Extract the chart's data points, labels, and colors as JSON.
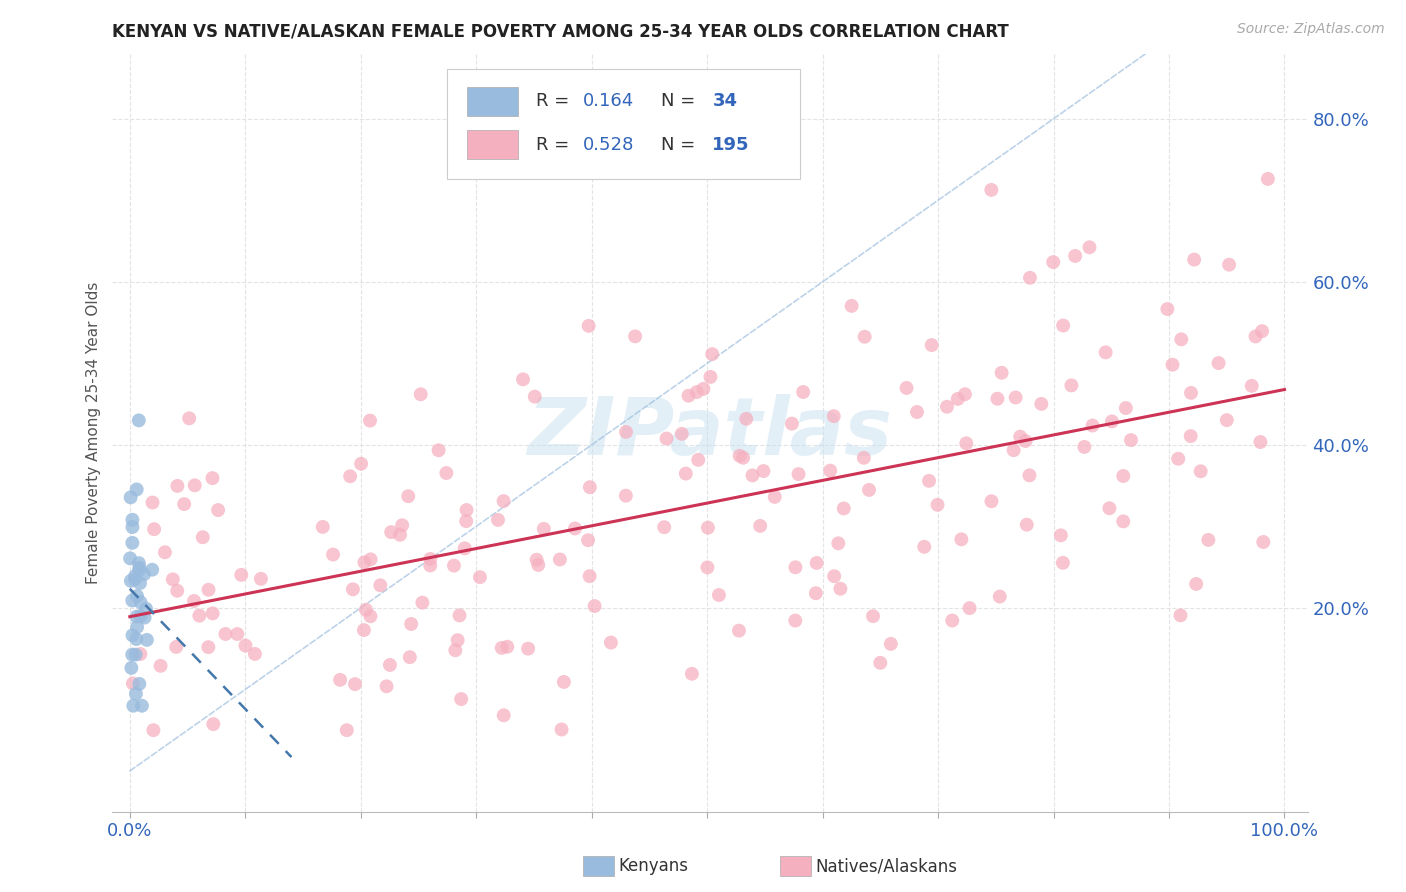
{
  "title": "KENYAN VS NATIVE/ALASKAN FEMALE POVERTY AMONG 25-34 YEAR OLDS CORRELATION CHART",
  "source": "Source: ZipAtlas.com",
  "ylabel": "Female Poverty Among 25-34 Year Olds",
  "kenyan_R": "0.164",
  "kenyan_N": "34",
  "native_R": "0.528",
  "native_N": "195",
  "kenyan_color": "#99bbdd",
  "kenyan_line_color": "#4477aa",
  "native_color": "#f5b0c0",
  "native_line_color": "#cc3355",
  "ref_line_color": "#99bbdd",
  "background_color": "#ffffff",
  "grid_color": "#dddddd",
  "title_fontsize": 12,
  "source_fontsize": 10,
  "axis_label_color": "#3366bb",
  "ylabel_color": "#555555",
  "xlim": [
    -0.015,
    1.02
  ],
  "ylim": [
    -0.05,
    0.88
  ],
  "yticks": [
    0.2,
    0.4,
    0.6,
    0.8
  ],
  "xtick_positions": [
    0.0,
    0.1,
    0.2,
    0.3,
    0.4,
    0.5,
    0.6,
    0.7,
    0.8,
    0.9,
    1.0
  ],
  "watermark_text": "ZIPatlas",
  "watermark_color": "#c8e0f0",
  "watermark_alpha": 0.5,
  "watermark_fontsize": 58,
  "legend_r1_label": "R = 0.164   N =  34",
  "legend_r2_label": "R = 0.528   N = 195",
  "bottom_legend_labels": [
    "Kenyans",
    "Natives/Alaskans"
  ]
}
